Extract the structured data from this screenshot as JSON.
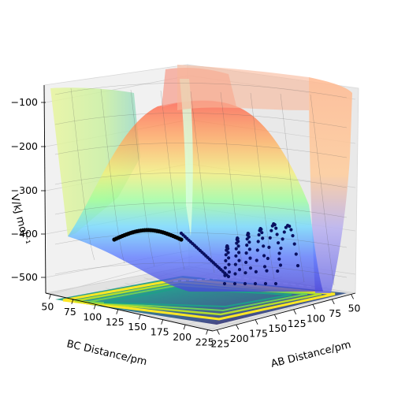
{
  "chart_data": {
    "type": "surface-3d",
    "title": "",
    "zlabel": "V/kJ mol⁻¹",
    "xlabel": "AB Distance/pm",
    "ylabel": "BC Distance/pm",
    "z_ticks": [
      "−100",
      "−200",
      "−300",
      "−400",
      "−500"
    ],
    "x_ticks": [
      "50",
      "75",
      "100",
      "125",
      "150",
      "175",
      "200",
      "225"
    ],
    "y_ticks": [
      "50",
      "75",
      "100",
      "125",
      "150",
      "175",
      "200",
      "225"
    ],
    "zlim": [
      -560,
      -80
    ],
    "xlim": [
      50,
      240
    ],
    "ylim": [
      50,
      240
    ],
    "grid": true,
    "colors": {
      "surface_top": "#ff6a50",
      "surface_mid": "#7fffb0",
      "surface_low": "#5a7dff",
      "trajectory": "#0b0b3a",
      "contour": "#2a8c8c"
    },
    "trajectory_points": 120
  }
}
